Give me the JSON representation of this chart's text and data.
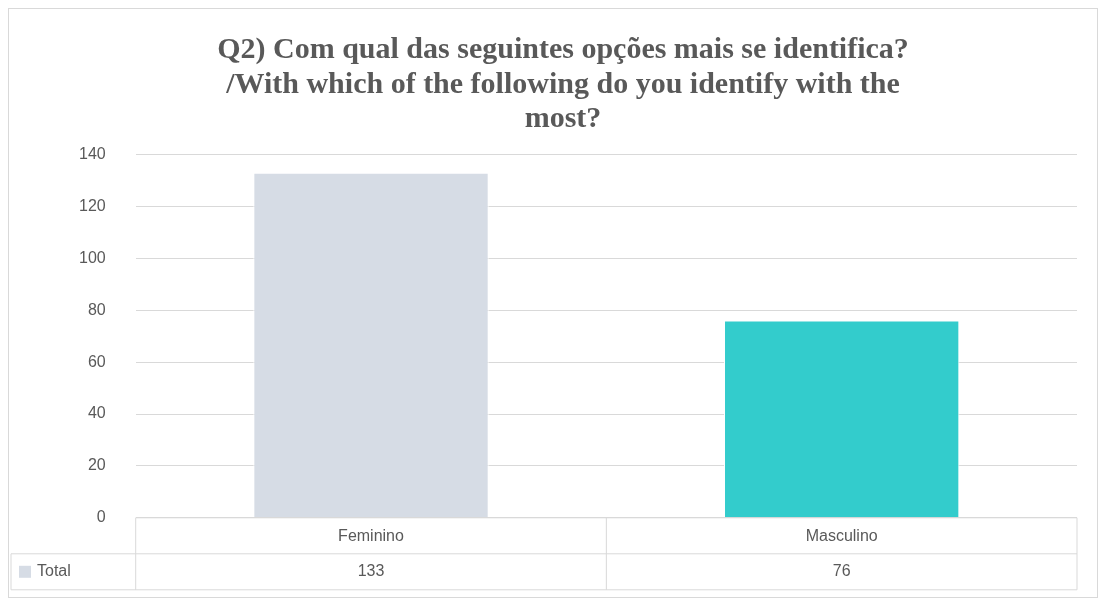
{
  "chart_data": {
    "type": "bar",
    "title": "Q2) Com qual das seguintes opções mais se identifica? /With which of the following do you identify with the most?",
    "categories": [
      "Feminino",
      "Masculino"
    ],
    "series": [
      {
        "name": "Total",
        "colors": [
          "#d6dce5",
          "#33cccc"
        ],
        "values": [
          133,
          76
        ]
      }
    ],
    "ylim": [
      0,
      140
    ],
    "yticks": [
      0,
      20,
      40,
      60,
      80,
      100,
      120,
      140
    ],
    "grid": "y",
    "data_labels": true
  }
}
